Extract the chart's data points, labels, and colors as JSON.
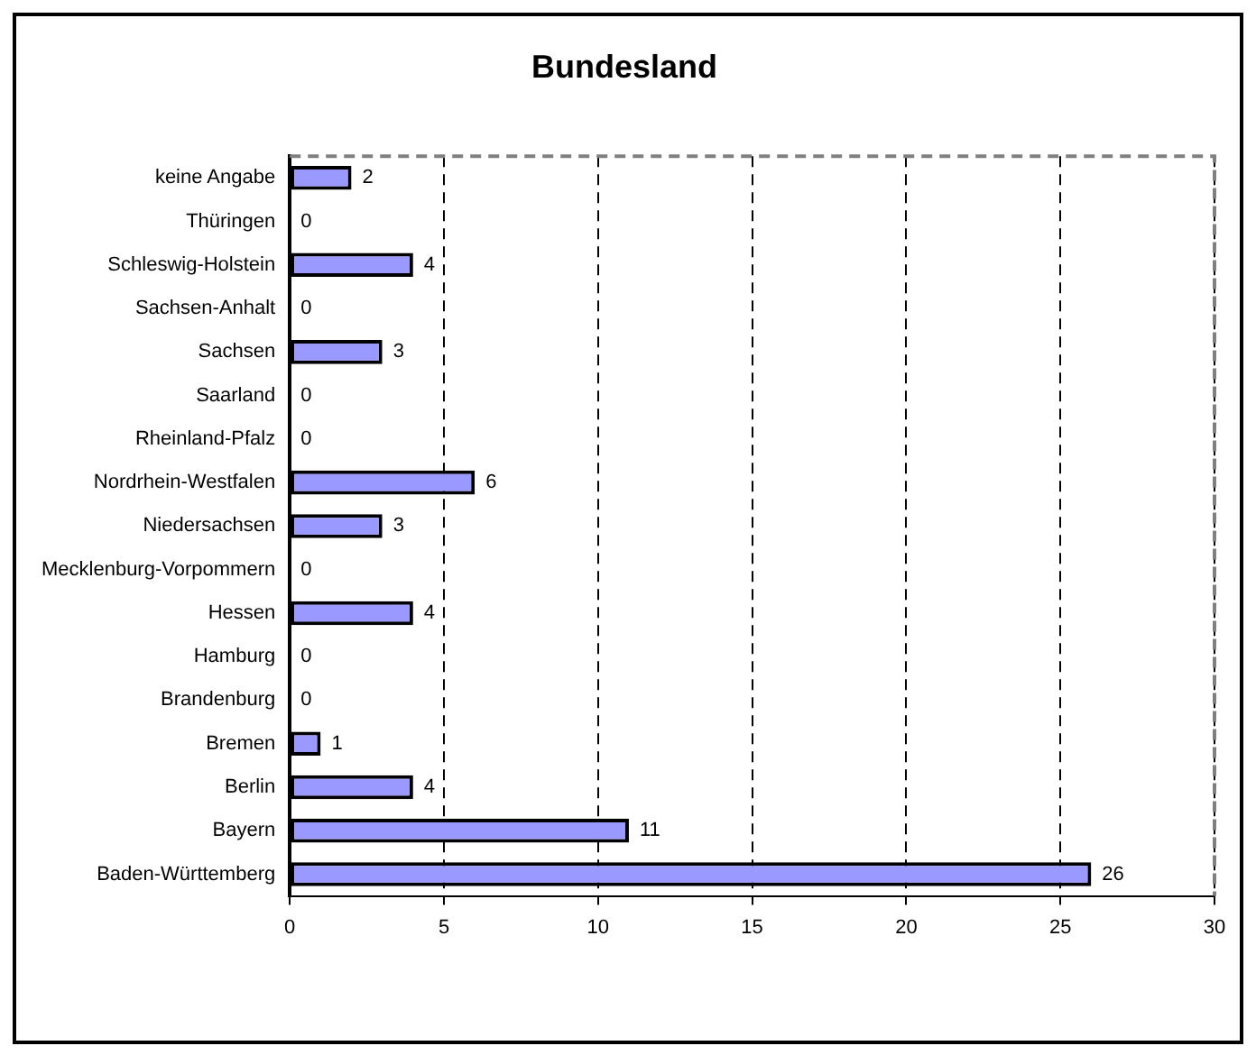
{
  "chart_data": {
    "type": "bar",
    "orientation": "horizontal",
    "title": "Bundesland",
    "categories": [
      "keine Angabe",
      "Thüringen",
      "Schleswig-Holstein",
      "Sachsen-Anhalt",
      "Sachsen",
      "Saarland",
      "Rheinland-Pfalz",
      "Nordrhein-Westfalen",
      "Niedersachsen",
      "Mecklenburg-Vorpommern",
      "Hessen",
      "Hamburg",
      "Brandenburg",
      "Bremen",
      "Berlin",
      "Bayern",
      "Baden-Württemberg"
    ],
    "values": [
      2,
      0,
      4,
      0,
      3,
      0,
      0,
      6,
      3,
      0,
      4,
      0,
      0,
      1,
      4,
      11,
      26
    ],
    "color": "#9999ff",
    "xlim": [
      0,
      30
    ],
    "xticks": [
      0,
      5,
      10,
      15,
      20,
      25,
      30
    ],
    "grid": "x",
    "data_labels": true,
    "legend": false
  }
}
